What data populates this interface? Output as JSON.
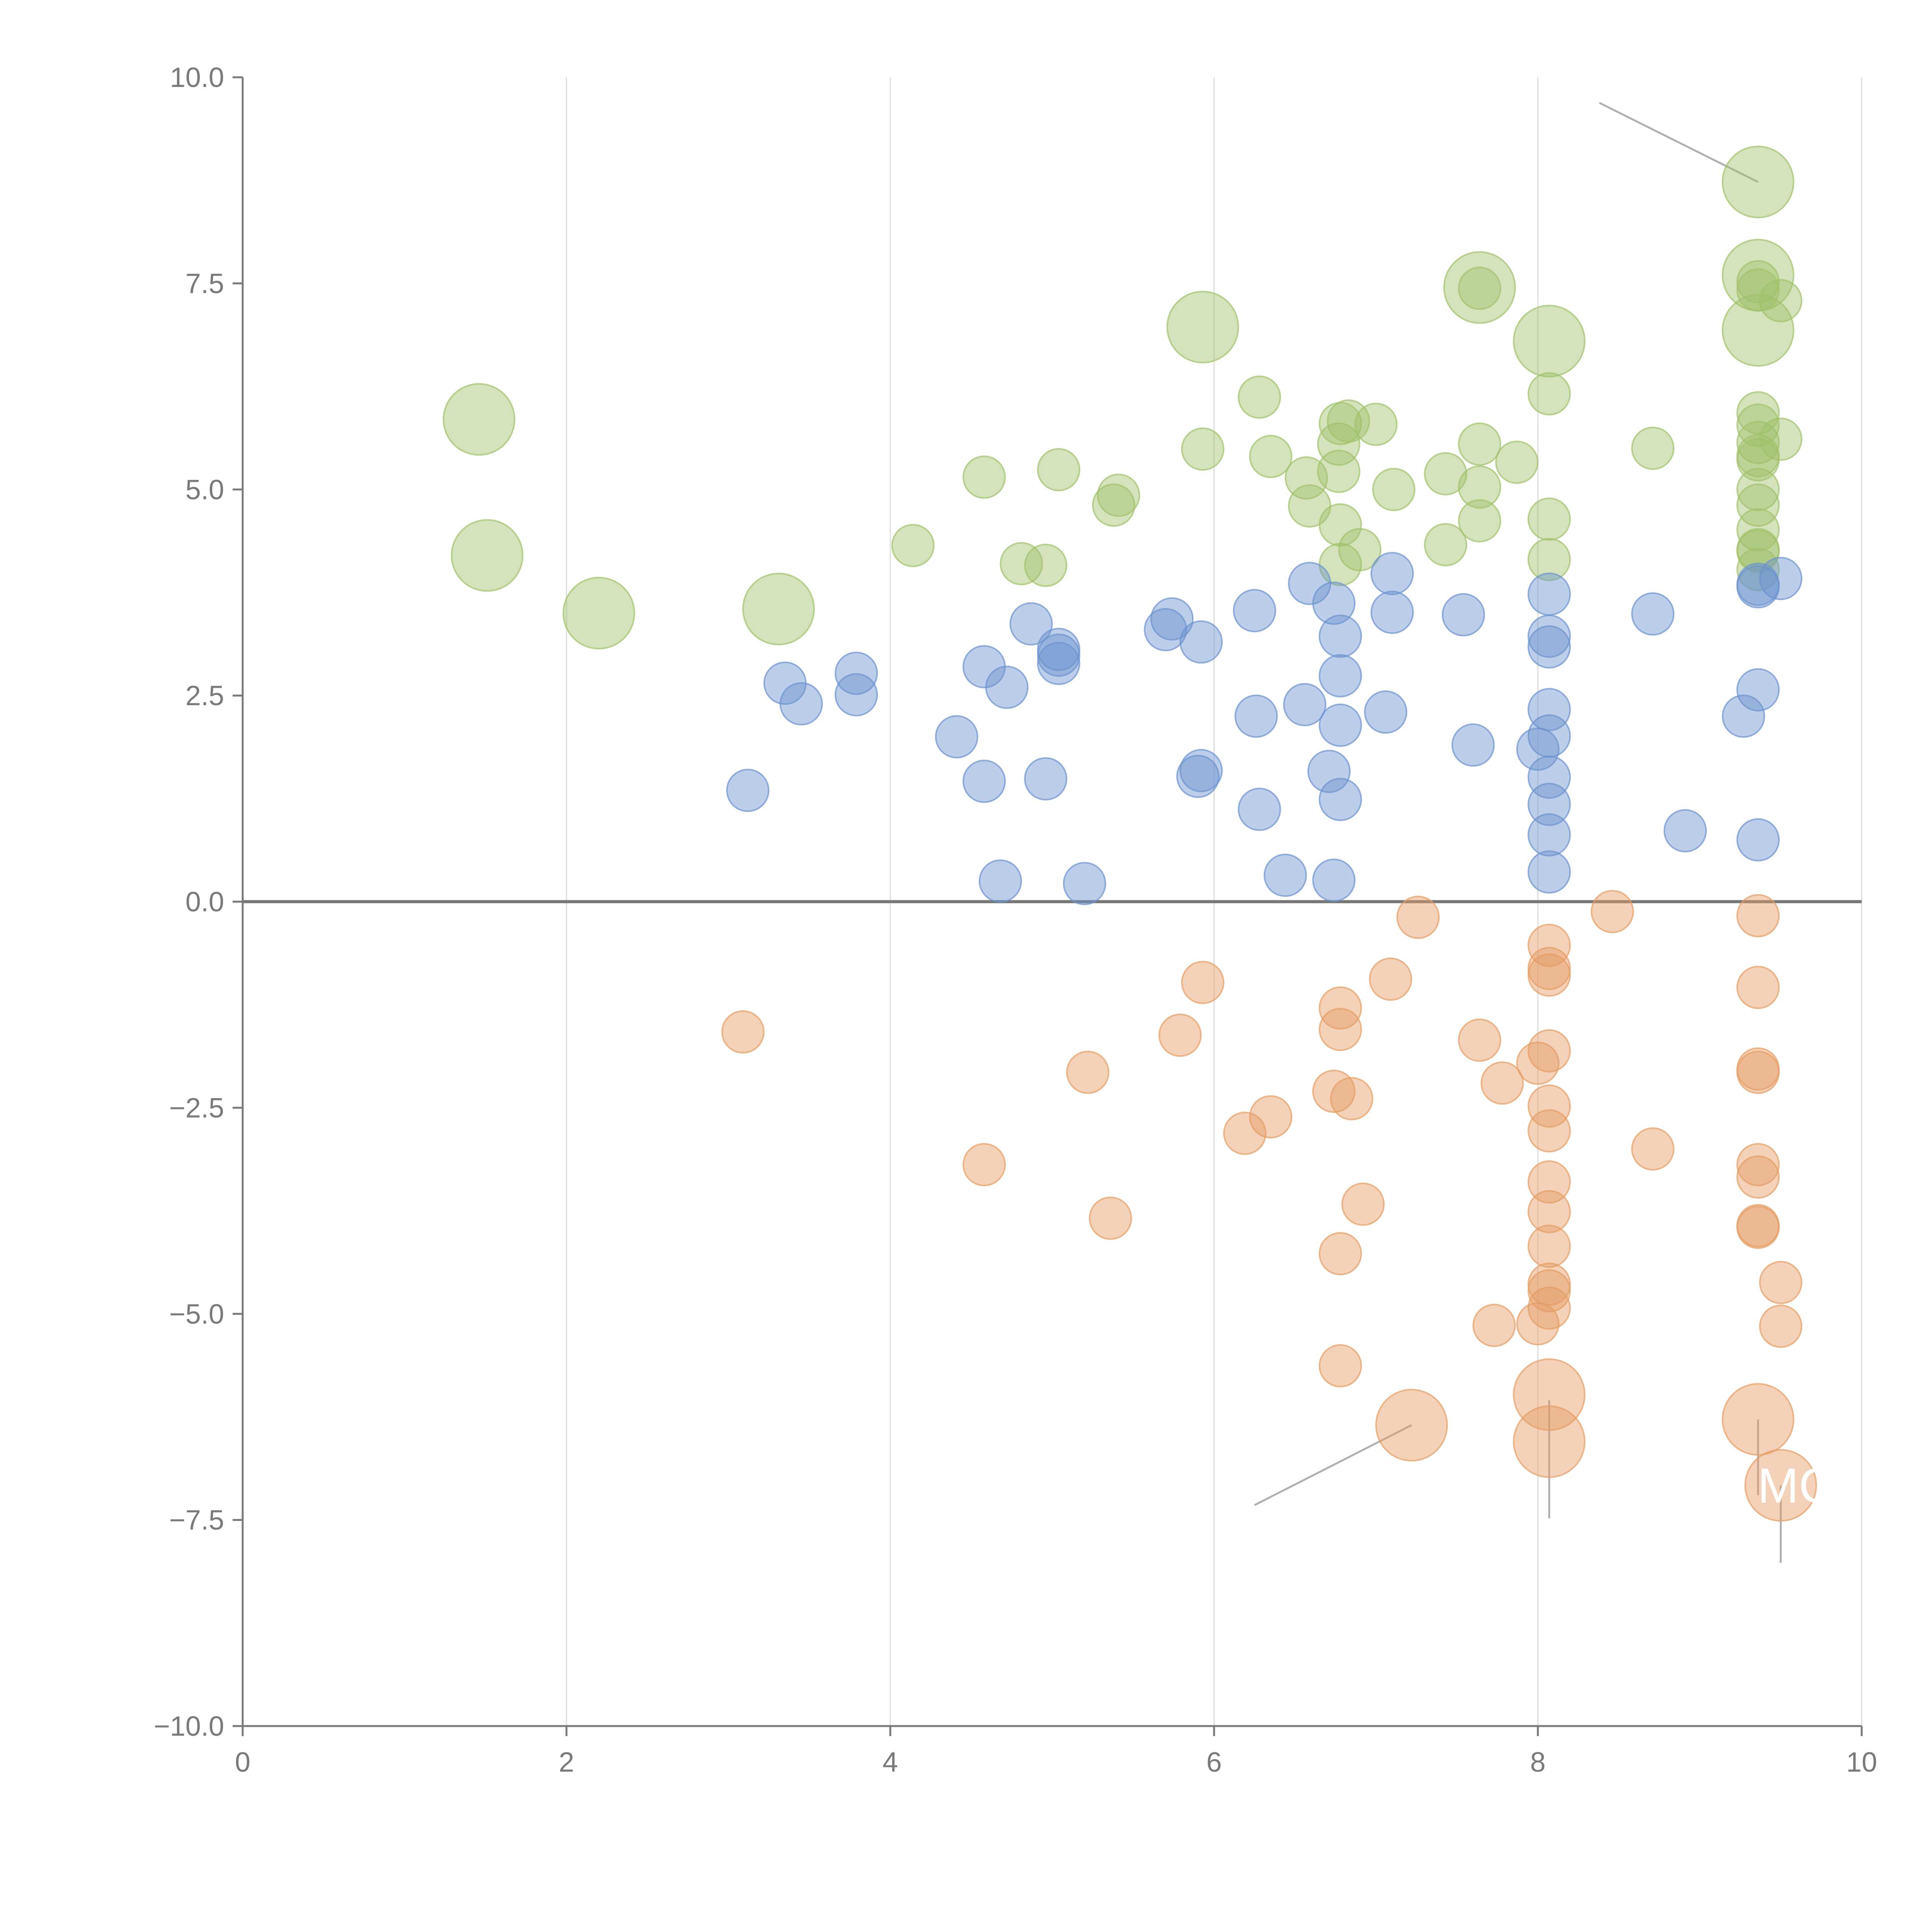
{
  "chart_data": {
    "type": "scatter",
    "title": "",
    "xlabel": "",
    "ylabel": "",
    "xlim": [
      0,
      10
    ],
    "ylim": [
      -10,
      10
    ],
    "xticks": [
      0,
      2,
      4,
      6,
      8,
      10
    ],
    "x_tick_labels": [
      "0",
      "2",
      "4",
      "6",
      "8",
      "10"
    ],
    "yticks": [
      -10,
      -7.5,
      -5,
      -2.5,
      0,
      2.5,
      5,
      7.5,
      10
    ],
    "y_tick_labels": [
      "−10.0",
      "−7.5",
      "−5.0",
      "−2.5",
      "0.0",
      "2.5",
      "5.0",
      "7.5",
      "10.0"
    ],
    "vertical_grid": true,
    "zero_line": true,
    "legend": "none",
    "colors": {
      "positive_high": "#9fc26a",
      "positive_low": "#6b93cf",
      "negative": "#e59c63",
      "axis": "#7a7a7a",
      "grid": "#dddddd",
      "zero_line": "#777777",
      "leader_line": "#b0b0b0"
    },
    "series": [
      {
        "name": "green",
        "color": "#9fc26a",
        "points": [
          {
            "x": 1.46,
            "y": 5.85,
            "size": "large"
          },
          {
            "x": 1.51,
            "y": 4.2,
            "size": "large"
          },
          {
            "x": 2.2,
            "y": 3.5,
            "size": "large"
          },
          {
            "x": 3.31,
            "y": 3.55,
            "size": "large"
          },
          {
            "x": 5.93,
            "y": 6.97,
            "size": "large"
          },
          {
            "x": 7.64,
            "y": 7.45,
            "size": "large"
          },
          {
            "x": 8.07,
            "y": 6.8,
            "size": "large"
          },
          {
            "x": 9.36,
            "y": 8.73,
            "size": "large"
          },
          {
            "x": 9.36,
            "y": 7.6,
            "size": "large"
          },
          {
            "x": 9.36,
            "y": 6.93,
            "size": "large"
          },
          {
            "x": 4.14,
            "y": 4.32
          },
          {
            "x": 4.58,
            "y": 5.15
          },
          {
            "x": 4.81,
            "y": 4.1
          },
          {
            "x": 4.96,
            "y": 4.08
          },
          {
            "x": 5.04,
            "y": 5.24
          },
          {
            "x": 5.38,
            "y": 4.81
          },
          {
            "x": 5.41,
            "y": 4.93
          },
          {
            "x": 5.93,
            "y": 5.49
          },
          {
            "x": 6.28,
            "y": 6.12
          },
          {
            "x": 6.35,
            "y": 5.4
          },
          {
            "x": 6.57,
            "y": 5.14
          },
          {
            "x": 6.59,
            "y": 4.8
          },
          {
            "x": 6.77,
            "y": 5.55
          },
          {
            "x": 6.77,
            "y": 5.22
          },
          {
            "x": 6.78,
            "y": 5.8
          },
          {
            "x": 6.78,
            "y": 4.57
          },
          {
            "x": 6.78,
            "y": 4.09
          },
          {
            "x": 6.83,
            "y": 5.83
          },
          {
            "x": 6.9,
            "y": 4.27
          },
          {
            "x": 7.0,
            "y": 5.79
          },
          {
            "x": 7.11,
            "y": 5.0
          },
          {
            "x": 7.43,
            "y": 5.19
          },
          {
            "x": 7.43,
            "y": 4.33
          },
          {
            "x": 7.64,
            "y": 7.44
          },
          {
            "x": 7.64,
            "y": 5.55
          },
          {
            "x": 7.64,
            "y": 5.03
          },
          {
            "x": 7.64,
            "y": 4.62
          },
          {
            "x": 7.87,
            "y": 5.33
          },
          {
            "x": 8.07,
            "y": 6.16
          },
          {
            "x": 8.07,
            "y": 4.64
          },
          {
            "x": 8.07,
            "y": 4.15
          },
          {
            "x": 8.71,
            "y": 5.5
          },
          {
            "x": 9.36,
            "y": 7.52
          },
          {
            "x": 9.36,
            "y": 7.42
          },
          {
            "x": 9.36,
            "y": 5.93
          },
          {
            "x": 9.36,
            "y": 5.78
          },
          {
            "x": 9.36,
            "y": 5.57
          },
          {
            "x": 9.36,
            "y": 5.41
          },
          {
            "x": 9.36,
            "y": 5.36
          },
          {
            "x": 9.36,
            "y": 5.0
          },
          {
            "x": 9.36,
            "y": 4.81
          },
          {
            "x": 9.36,
            "y": 4.51
          },
          {
            "x": 9.36,
            "y": 4.27
          },
          {
            "x": 9.36,
            "y": 4.25
          },
          {
            "x": 9.36,
            "y": 4.03
          },
          {
            "x": 9.5,
            "y": 7.29
          },
          {
            "x": 9.5,
            "y": 5.61
          }
        ]
      },
      {
        "name": "blue",
        "color": "#6b93cf",
        "points": [
          {
            "x": 3.12,
            "y": 1.35
          },
          {
            "x": 3.35,
            "y": 2.65
          },
          {
            "x": 3.45,
            "y": 2.4
          },
          {
            "x": 3.79,
            "y": 2.77
          },
          {
            "x": 3.79,
            "y": 2.51
          },
          {
            "x": 4.41,
            "y": 2.0
          },
          {
            "x": 4.58,
            "y": 2.85
          },
          {
            "x": 4.58,
            "y": 1.46
          },
          {
            "x": 4.68,
            "y": 0.25
          },
          {
            "x": 4.72,
            "y": 2.6
          },
          {
            "x": 4.87,
            "y": 3.37
          },
          {
            "x": 4.96,
            "y": 1.49
          },
          {
            "x": 5.04,
            "y": 3.06
          },
          {
            "x": 5.04,
            "y": 2.99
          },
          {
            "x": 5.04,
            "y": 2.89
          },
          {
            "x": 5.2,
            "y": 0.22
          },
          {
            "x": 5.7,
            "y": 3.3
          },
          {
            "x": 5.74,
            "y": 3.43
          },
          {
            "x": 5.9,
            "y": 1.52
          },
          {
            "x": 5.92,
            "y": 3.15
          },
          {
            "x": 5.92,
            "y": 1.59
          },
          {
            "x": 6.25,
            "y": 3.53
          },
          {
            "x": 6.26,
            "y": 2.25
          },
          {
            "x": 6.28,
            "y": 1.12
          },
          {
            "x": 6.44,
            "y": 0.32
          },
          {
            "x": 6.56,
            "y": 2.39
          },
          {
            "x": 6.59,
            "y": 3.86
          },
          {
            "x": 6.71,
            "y": 1.58
          },
          {
            "x": 6.74,
            "y": 3.62
          },
          {
            "x": 6.74,
            "y": 0.26
          },
          {
            "x": 6.78,
            "y": 3.22
          },
          {
            "x": 6.78,
            "y": 2.74
          },
          {
            "x": 6.78,
            "y": 2.14
          },
          {
            "x": 6.78,
            "y": 1.24
          },
          {
            "x": 7.06,
            "y": 2.3
          },
          {
            "x": 7.1,
            "y": 3.98
          },
          {
            "x": 7.1,
            "y": 3.51
          },
          {
            "x": 7.54,
            "y": 3.48
          },
          {
            "x": 7.6,
            "y": 1.9
          },
          {
            "x": 8.0,
            "y": 1.85
          },
          {
            "x": 8.07,
            "y": 3.73
          },
          {
            "x": 8.07,
            "y": 3.22
          },
          {
            "x": 8.07,
            "y": 3.09
          },
          {
            "x": 8.07,
            "y": 2.33
          },
          {
            "x": 8.07,
            "y": 2.01
          },
          {
            "x": 8.07,
            "y": 1.51
          },
          {
            "x": 8.07,
            "y": 1.18
          },
          {
            "x": 8.07,
            "y": 0.81
          },
          {
            "x": 8.07,
            "y": 0.36
          },
          {
            "x": 8.71,
            "y": 3.49
          },
          {
            "x": 8.91,
            "y": 0.86
          },
          {
            "x": 9.27,
            "y": 2.25
          },
          {
            "x": 9.36,
            "y": 3.85
          },
          {
            "x": 9.36,
            "y": 3.82
          },
          {
            "x": 9.36,
            "y": 2.57
          },
          {
            "x": 9.36,
            "y": 0.75
          },
          {
            "x": 9.5,
            "y": 3.92
          }
        ]
      },
      {
        "name": "orange",
        "color": "#e59c63",
        "points": [
          {
            "x": 7.22,
            "y": -6.35,
            "size": "large"
          },
          {
            "x": 8.07,
            "y": -5.98,
            "size": "large"
          },
          {
            "x": 8.07,
            "y": -6.55,
            "size": "large"
          },
          {
            "x": 9.36,
            "y": -6.28,
            "size": "large"
          },
          {
            "x": 9.5,
            "y": -7.08,
            "size": "large"
          },
          {
            "x": 3.09,
            "y": -1.58
          },
          {
            "x": 4.58,
            "y": -3.19
          },
          {
            "x": 5.22,
            "y": -2.07
          },
          {
            "x": 5.36,
            "y": -3.84
          },
          {
            "x": 5.79,
            "y": -1.62
          },
          {
            "x": 5.93,
            "y": -0.98
          },
          {
            "x": 6.19,
            "y": -2.81
          },
          {
            "x": 6.35,
            "y": -2.61
          },
          {
            "x": 6.74,
            "y": -2.3
          },
          {
            "x": 6.78,
            "y": -1.29
          },
          {
            "x": 6.78,
            "y": -1.55
          },
          {
            "x": 6.78,
            "y": -4.27
          },
          {
            "x": 6.78,
            "y": -5.63
          },
          {
            "x": 6.85,
            "y": -2.39
          },
          {
            "x": 6.92,
            "y": -3.67
          },
          {
            "x": 7.09,
            "y": -0.94
          },
          {
            "x": 7.26,
            "y": -0.19
          },
          {
            "x": 7.64,
            "y": -1.68
          },
          {
            "x": 7.73,
            "y": -5.14
          },
          {
            "x": 7.78,
            "y": -2.2
          },
          {
            "x": 8.0,
            "y": -1.96
          },
          {
            "x": 8.0,
            "y": -5.12
          },
          {
            "x": 8.07,
            "y": -0.53
          },
          {
            "x": 8.07,
            "y": -0.81
          },
          {
            "x": 8.07,
            "y": -0.89
          },
          {
            "x": 8.07,
            "y": -1.81
          },
          {
            "x": 8.07,
            "y": -2.48
          },
          {
            "x": 8.07,
            "y": -2.78
          },
          {
            "x": 8.07,
            "y": -3.4
          },
          {
            "x": 8.07,
            "y": -3.76
          },
          {
            "x": 8.07,
            "y": -4.18
          },
          {
            "x": 8.07,
            "y": -4.64
          },
          {
            "x": 8.07,
            "y": -4.72
          },
          {
            "x": 8.07,
            "y": -4.93
          },
          {
            "x": 8.46,
            "y": -0.12
          },
          {
            "x": 8.71,
            "y": -3.0
          },
          {
            "x": 9.36,
            "y": -0.17
          },
          {
            "x": 9.36,
            "y": -1.04
          },
          {
            "x": 9.36,
            "y": -2.03
          },
          {
            "x": 9.36,
            "y": -2.07
          },
          {
            "x": 9.36,
            "y": -3.19
          },
          {
            "x": 9.36,
            "y": -3.34
          },
          {
            "x": 9.36,
            "y": -3.93
          },
          {
            "x": 9.36,
            "y": -3.95
          },
          {
            "x": 9.5,
            "y": -4.62
          },
          {
            "x": 9.5,
            "y": -5.15
          }
        ]
      }
    ],
    "annotations": [
      {
        "text": "MC",
        "x": 9.5,
        "y": -7.08,
        "color": "#ffffff"
      }
    ]
  }
}
